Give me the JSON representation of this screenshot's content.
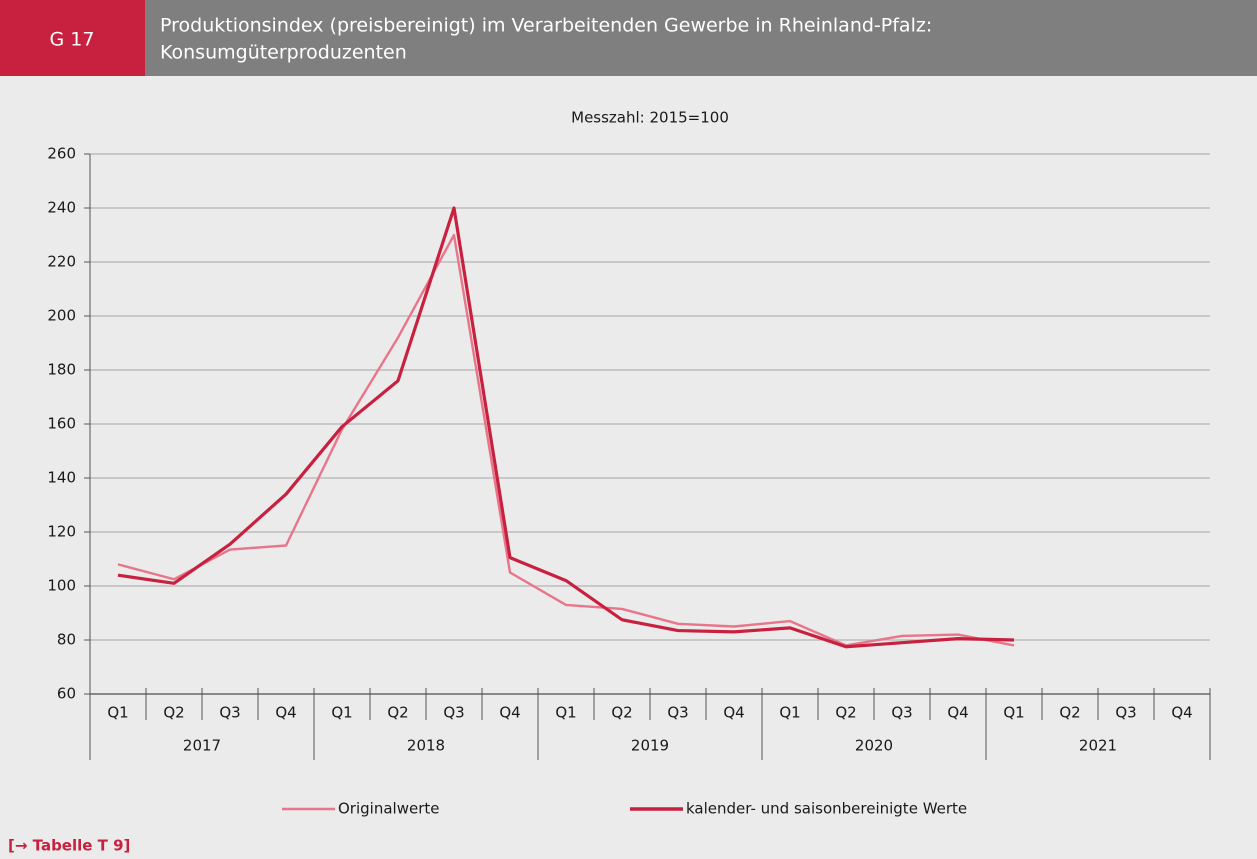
{
  "header": {
    "code": "G 17",
    "title_lines": [
      "Produktionsindex (preisbereinigt) im  Verarbeitenden Gewerbe in Rheinland-Pfalz:",
      "Konsumgüterproduzenten"
    ]
  },
  "chart_data": {
    "type": "line",
    "subtitle": "Messzahl: 2015=100",
    "categories": [
      "Q1",
      "Q2",
      "Q3",
      "Q4",
      "Q1",
      "Q2",
      "Q3",
      "Q4",
      "Q1",
      "Q2",
      "Q3",
      "Q4",
      "Q1",
      "Q2",
      "Q3",
      "Q4",
      "Q1",
      "Q2",
      "Q3",
      "Q4"
    ],
    "category_groups": [
      "2017",
      "2018",
      "2019",
      "2020",
      "2021"
    ],
    "series": [
      {
        "name": "Originalwerte",
        "color": "#e8758a",
        "values": [
          108,
          102.5,
          113.5,
          115,
          158,
          192,
          230,
          105,
          93,
          91.5,
          86,
          85,
          87,
          78,
          81.5,
          82,
          78,
          null,
          null,
          null
        ]
      },
      {
        "name": "kalender- und saisonbereinigte Werte",
        "color": "#c8213f",
        "values": [
          104,
          101,
          115.5,
          134,
          159,
          176,
          240,
          110.5,
          102,
          87.5,
          83.5,
          83,
          84.5,
          77.5,
          79,
          80.5,
          80,
          null,
          null,
          null
        ]
      }
    ],
    "ylim": [
      60,
      260
    ],
    "yticks": [
      60,
      80,
      100,
      120,
      140,
      160,
      180,
      200,
      220,
      240,
      260
    ],
    "grid": true
  },
  "footer": {
    "link": "[→ Tabelle T 9]"
  }
}
